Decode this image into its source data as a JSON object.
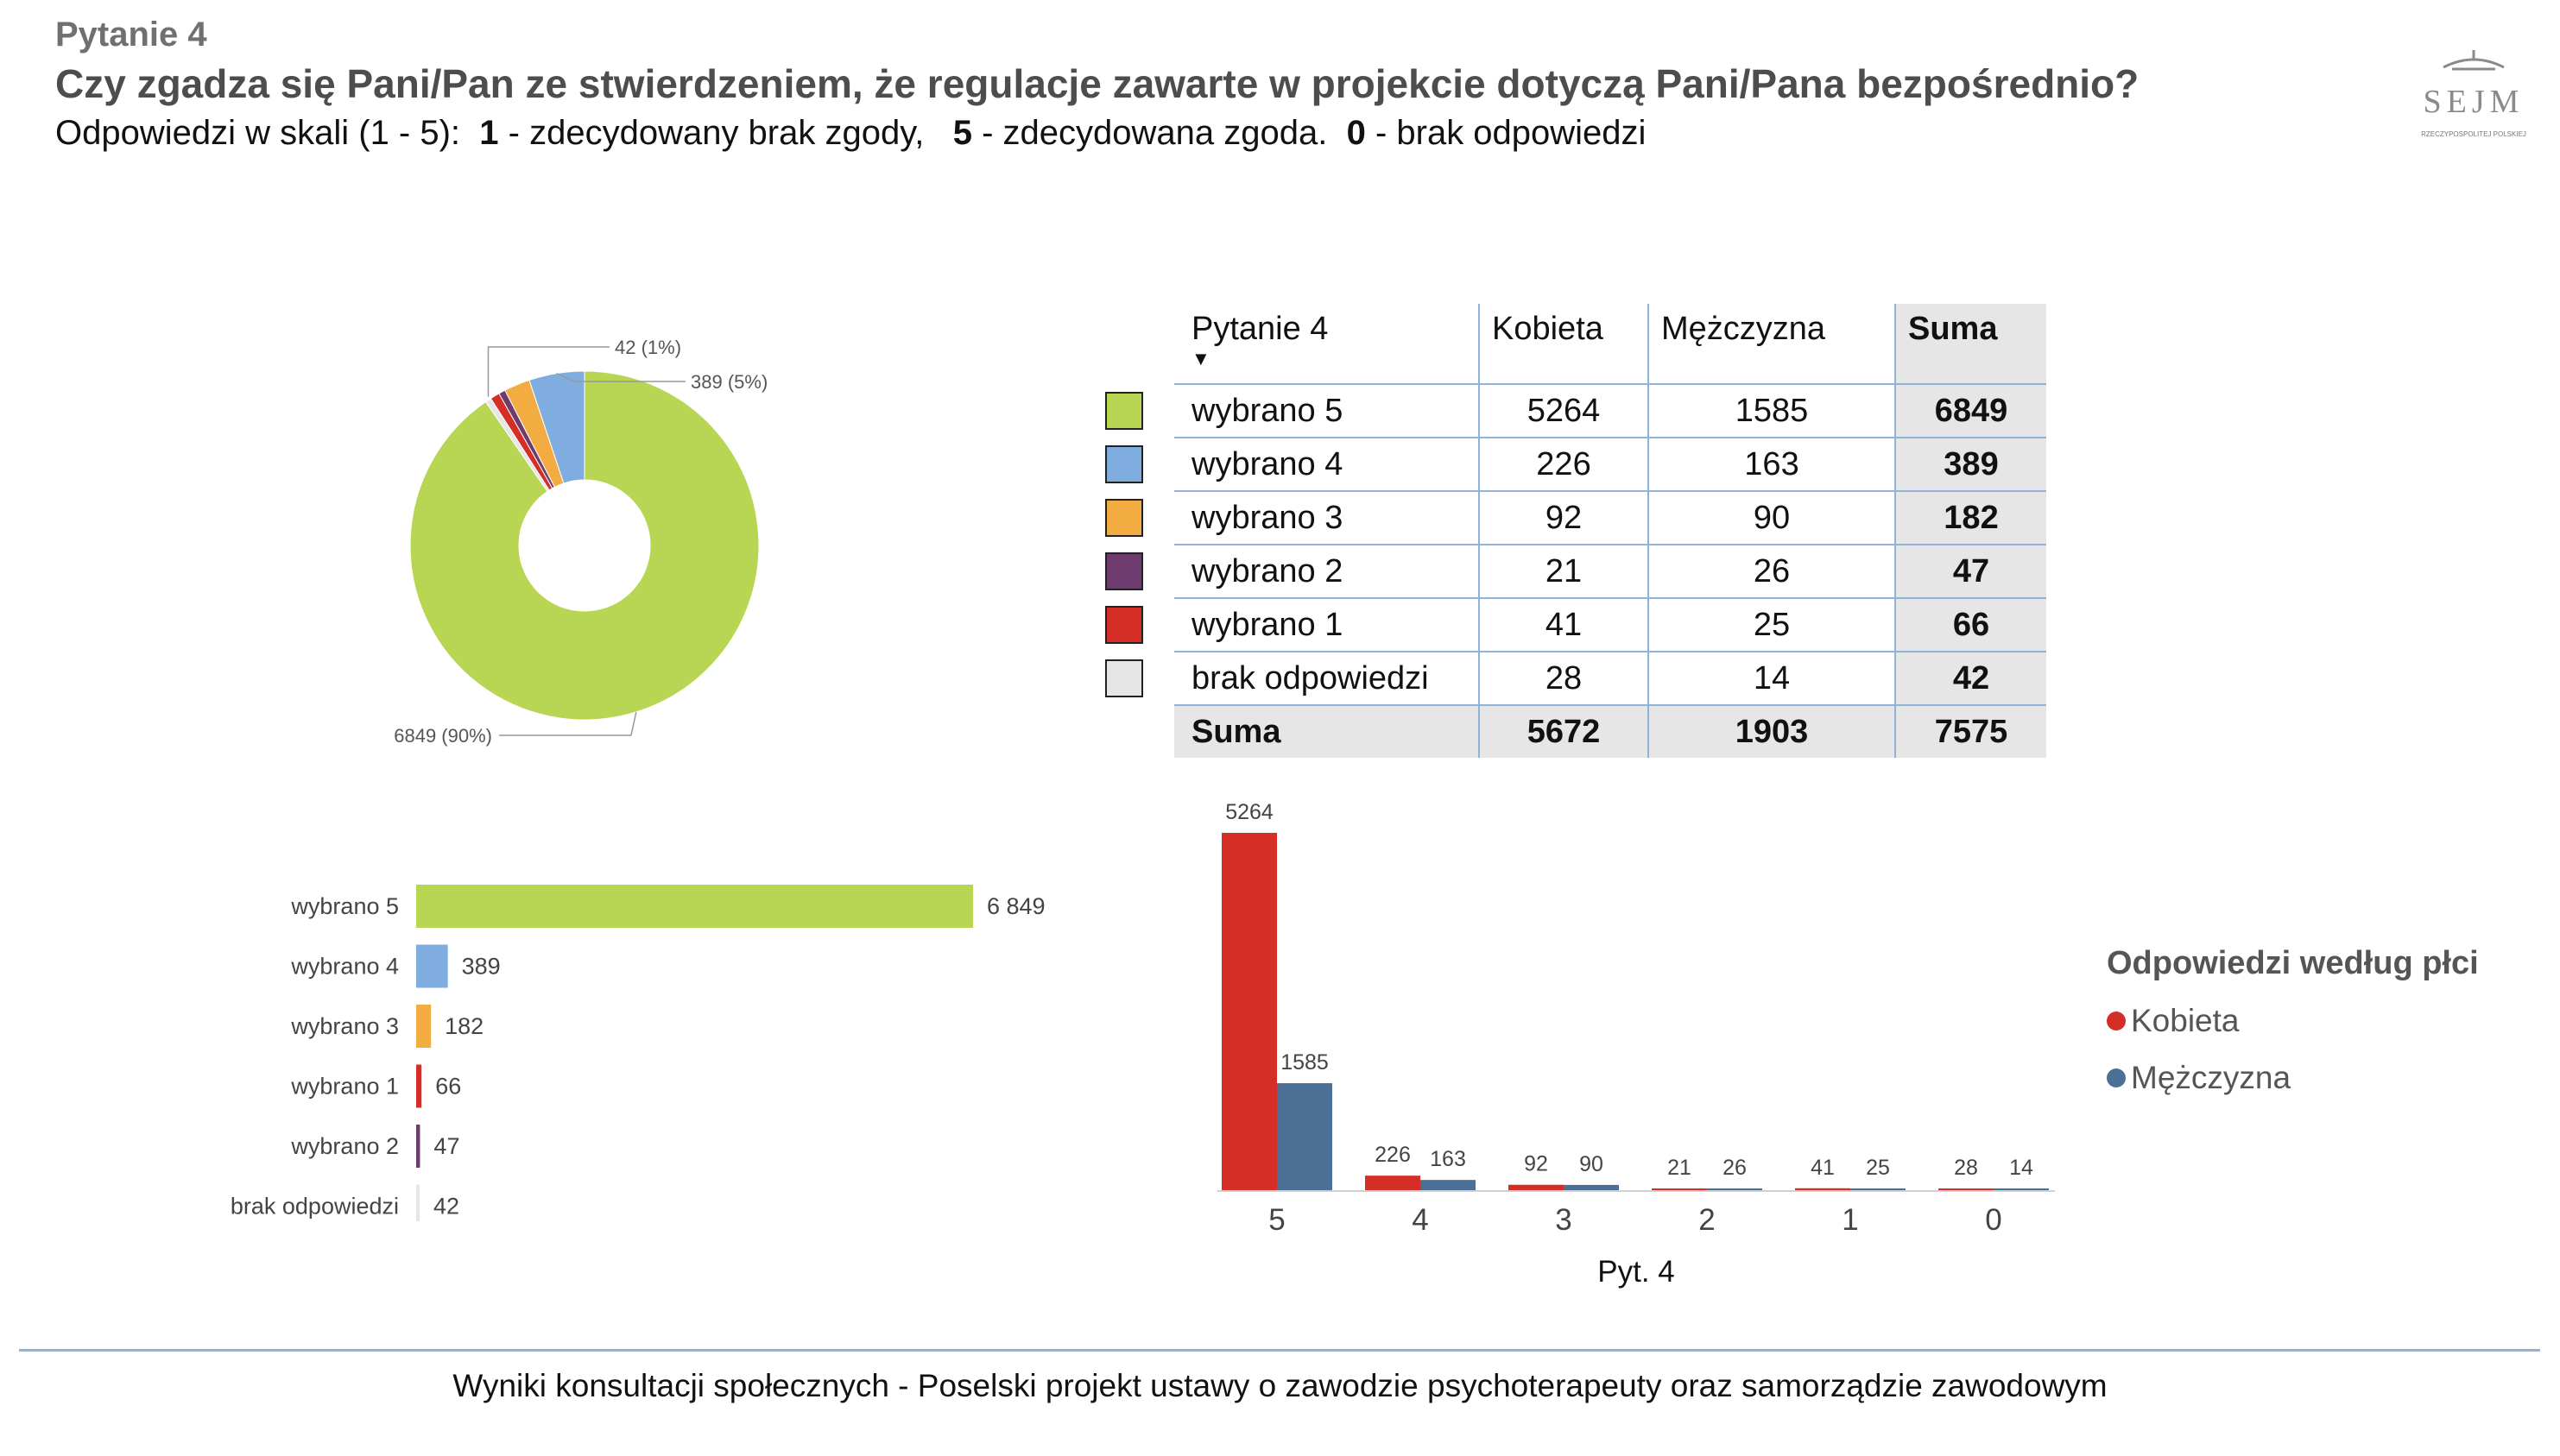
{
  "header": {
    "question_label": "Pytanie 4",
    "title": "Czy zgadza się Pani/Pan ze stwierdzeniem, że regulacje zawarte w projekcie dotyczą Pani/Pana  bezpośrednio?",
    "scale_intro": "Odpowiedzi w skali (1 - 5):",
    "scale_1_num": "1",
    "scale_1_text": " - zdecydowany brak zgody,",
    "scale_5_num": "5",
    "scale_5_text": " - zdecydowana zgoda.",
    "scale_0_num": "0",
    "scale_0_text": " - brak odpowiedzi"
  },
  "logo": {
    "text": "SEJM",
    "subtext": "RZECZYPOSPOLITEJ POLSKIEJ"
  },
  "colors": {
    "wybrano5": "#b8d654",
    "wybrano4": "#7fade0",
    "wybrano3": "#f2ac41",
    "wybrano2": "#6e3b6e",
    "wybrano1": "#d42e26",
    "brak": "#e6e6e6",
    "kobieta": "#d42e26",
    "mezczyzna": "#4c6f95"
  },
  "table": {
    "header": {
      "label": "Pytanie 4",
      "col1": "Kobieta",
      "col2": "Mężczyzna",
      "col3": "Suma"
    },
    "rows": [
      {
        "label": "wybrano 5",
        "k": "5264",
        "m": "1585",
        "s": "6849",
        "color": "#b8d654"
      },
      {
        "label": "wybrano 4",
        "k": "226",
        "m": "163",
        "s": "389",
        "color": "#7fade0"
      },
      {
        "label": "wybrano 3",
        "k": "92",
        "m": "90",
        "s": "182",
        "color": "#f2ac41"
      },
      {
        "label": "wybrano 2",
        "k": "21",
        "m": "26",
        "s": "47",
        "color": "#6e3b6e"
      },
      {
        "label": "wybrano 1",
        "k": "41",
        "m": "25",
        "s": "66",
        "color": "#d42e26"
      },
      {
        "label": "brak odpowiedzi",
        "k": "28",
        "m": "14",
        "s": "42",
        "color": "#e6e6e6"
      }
    ],
    "sum": {
      "label": "Suma",
      "k": "5672",
      "m": "1903",
      "s": "7575"
    }
  },
  "chart_data": [
    {
      "type": "pie",
      "donut": true,
      "slices": [
        {
          "name": "wybrano 5",
          "value": 6849,
          "label": "6849 (90%)",
          "color": "#b8d654"
        },
        {
          "name": "brak odpowiedzi",
          "value": 42,
          "label": "42 (1%)",
          "color": "#e6e6e6"
        },
        {
          "name": "wybrano 1",
          "value": 66,
          "label": "",
          "color": "#d42e26"
        },
        {
          "name": "wybrano 2",
          "value": 47,
          "label": "",
          "color": "#6e3b6e"
        },
        {
          "name": "wybrano 3",
          "value": 182,
          "label": "",
          "color": "#f2ac41"
        },
        {
          "name": "wybrano 4",
          "value": 389,
          "label": "389 (5%)",
          "color": "#7fade0"
        }
      ]
    },
    {
      "type": "bar",
      "orientation": "horizontal",
      "categories": [
        "wybrano 5",
        "wybrano 4",
        "wybrano 3",
        "wybrano 1",
        "wybrano 2",
        "brak odpowiedzi"
      ],
      "values": [
        6849,
        389,
        182,
        66,
        47,
        42
      ],
      "value_labels": [
        "6 849",
        "389",
        "182",
        "66",
        "47",
        "42"
      ],
      "colors": [
        "#b8d654",
        "#7fade0",
        "#f2ac41",
        "#d42e26",
        "#6e3b6e",
        "#e6e6e6"
      ]
    },
    {
      "type": "bar",
      "orientation": "vertical",
      "categories": [
        "5",
        "4",
        "3",
        "2",
        "1",
        "0"
      ],
      "xlabel": "Pyt. 4",
      "legend_title": "Odpowiedzi według płci",
      "series": [
        {
          "name": "Kobieta",
          "values": [
            5264,
            226,
            92,
            21,
            41,
            28
          ],
          "color": "#d42e26"
        },
        {
          "name": "Mężczyzna",
          "values": [
            1585,
            163,
            90,
            26,
            25,
            14
          ],
          "color": "#4c6f95"
        }
      ]
    }
  ],
  "footer": "Wyniki konsultacji społecznych - Poselski projekt ustawy o zawodzie psychoterapeuty oraz samorządzie zawodowym"
}
